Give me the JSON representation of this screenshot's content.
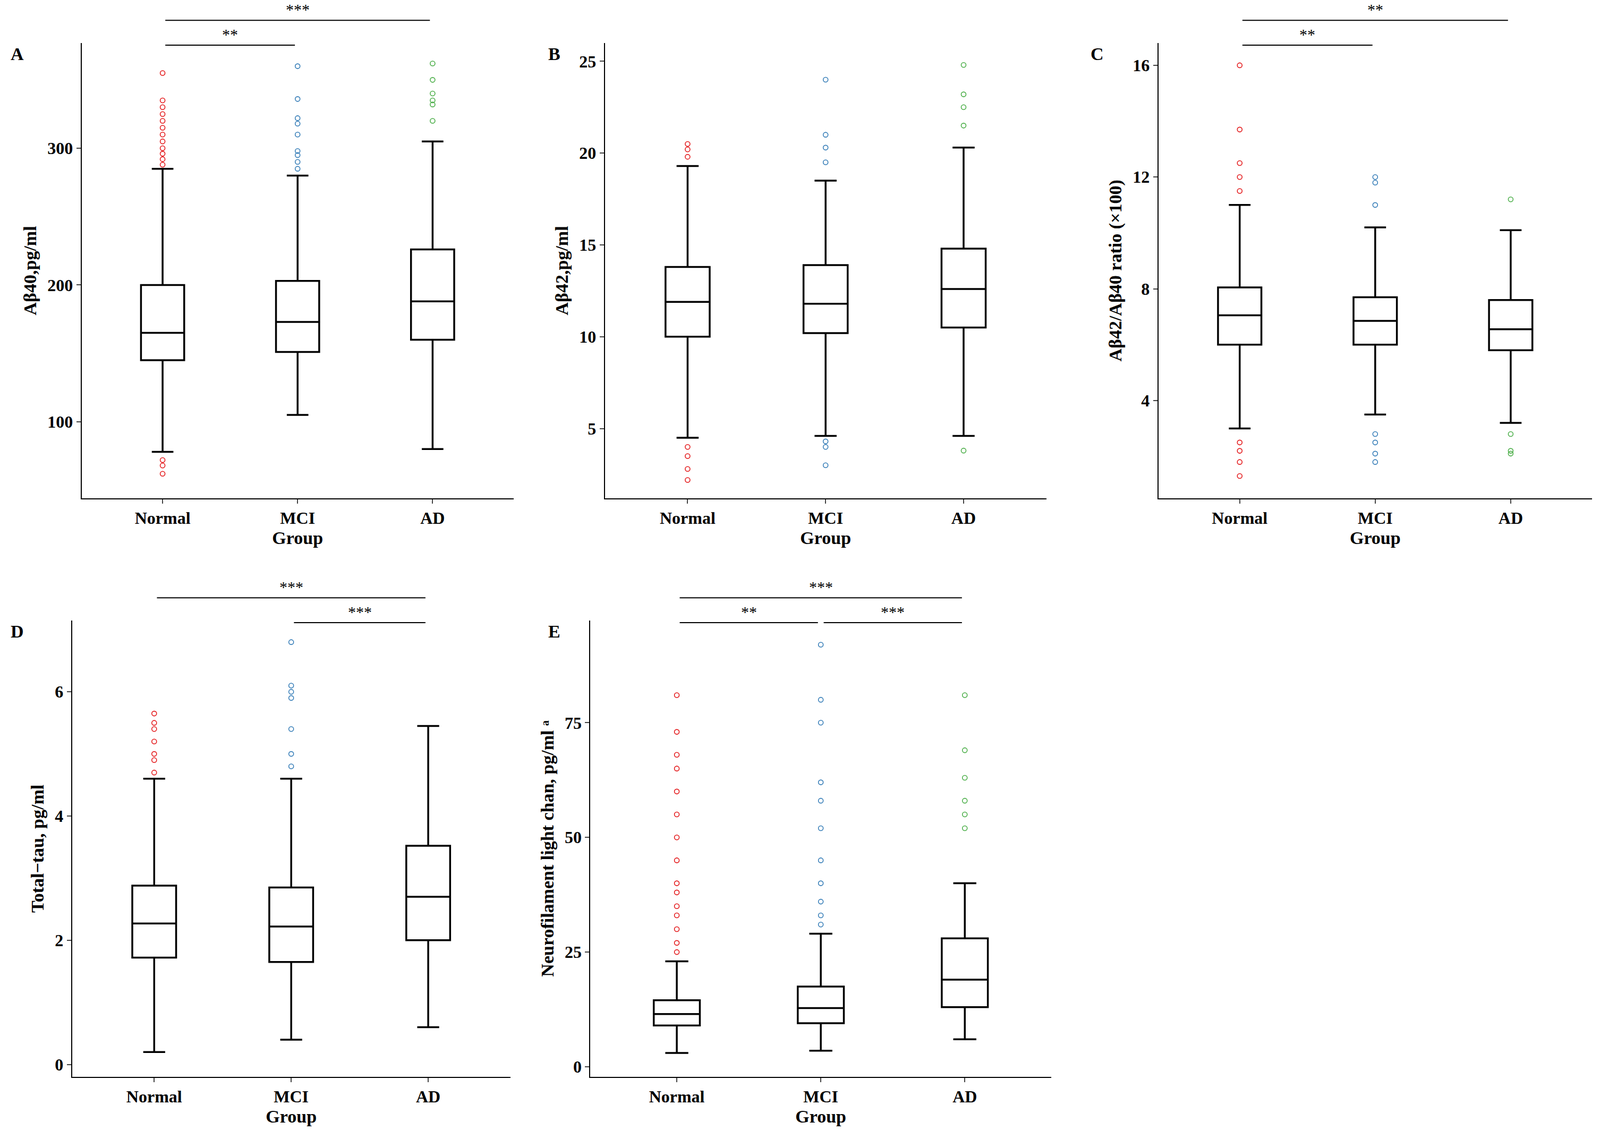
{
  "chart_data": [
    {
      "type": "box",
      "panel": "A",
      "x_label": "Group",
      "y_label": "Aβ40,pg/ml",
      "categories": [
        "Normal",
        "MCI",
        "AD"
      ],
      "colors": [
        "#e41a1c",
        "#377eb8",
        "#4daf4a"
      ],
      "boxes": [
        {
          "q1": 145,
          "median": 165,
          "q3": 200,
          "lower_whisker": 78,
          "upper_whisker": 285,
          "outliers": [
            62,
            68,
            72,
            288,
            292,
            296,
            300,
            305,
            310,
            315,
            320,
            325,
            330,
            335,
            355
          ]
        },
        {
          "q1": 151,
          "median": 173,
          "q3": 203,
          "lower_whisker": 105,
          "upper_whisker": 280,
          "outliers": [
            285,
            290,
            295,
            298,
            310,
            318,
            322,
            336,
            360
          ]
        },
        {
          "q1": 160,
          "median": 188,
          "q3": 226,
          "lower_whisker": 80,
          "upper_whisker": 305,
          "outliers": [
            320,
            332,
            335,
            340,
            350,
            362
          ]
        }
      ],
      "ylim": [
        44,
        377
      ],
      "yticks": [
        100,
        200,
        300
      ],
      "significance": [
        {
          "groups": [
            "Normal",
            "MCI"
          ],
          "label": "**"
        },
        {
          "groups": [
            "Normal",
            "AD"
          ],
          "label": "***"
        }
      ]
    },
    {
      "type": "box",
      "panel": "B",
      "x_label": "Group",
      "y_label": "Aβ42,pg/ml",
      "categories": [
        "Normal",
        "MCI",
        "AD"
      ],
      "colors": [
        "#e41a1c",
        "#377eb8",
        "#4daf4a"
      ],
      "boxes": [
        {
          "q1": 10.0,
          "median": 11.9,
          "q3": 13.8,
          "lower_whisker": 4.5,
          "upper_whisker": 19.3,
          "outliers": [
            2.2,
            2.8,
            3.5,
            4.0,
            19.8,
            20.2,
            20.5
          ]
        },
        {
          "q1": 10.2,
          "median": 11.8,
          "q3": 13.9,
          "lower_whisker": 4.6,
          "upper_whisker": 18.5,
          "outliers": [
            3.0,
            4.0,
            4.3,
            19.5,
            20.3,
            21.0,
            24.0
          ]
        },
        {
          "q1": 10.5,
          "median": 12.6,
          "q3": 14.8,
          "lower_whisker": 4.6,
          "upper_whisker": 20.3,
          "outliers": [
            3.8,
            21.5,
            22.5,
            23.2,
            24.8
          ]
        }
      ],
      "ylim": [
        1.2,
        26
      ],
      "yticks": [
        5,
        10,
        15,
        20,
        25
      ],
      "significance": []
    },
    {
      "type": "box",
      "panel": "C",
      "x_label": "Group",
      "y_label": "Aβ42/Aβ40 ratio (×100)",
      "categories": [
        "Normal",
        "MCI",
        "AD"
      ],
      "colors": [
        "#e41a1c",
        "#377eb8",
        "#4daf4a"
      ],
      "boxes": [
        {
          "q1": 6.0,
          "median": 7.05,
          "q3": 8.05,
          "lower_whisker": 3.0,
          "upper_whisker": 11.0,
          "outliers": [
            1.3,
            1.8,
            2.2,
            2.5,
            11.5,
            12.0,
            12.5,
            13.7,
            16.0
          ]
        },
        {
          "q1": 6.0,
          "median": 6.85,
          "q3": 7.7,
          "lower_whisker": 3.5,
          "upper_whisker": 10.2,
          "outliers": [
            1.8,
            2.1,
            2.5,
            2.8,
            11.0,
            11.8,
            12.0
          ]
        },
        {
          "q1": 5.8,
          "median": 6.55,
          "q3": 7.6,
          "lower_whisker": 3.2,
          "upper_whisker": 10.1,
          "outliers": [
            2.1,
            2.2,
            2.8,
            11.2
          ]
        }
      ],
      "ylim": [
        0.5,
        16.8
      ],
      "yticks": [
        4,
        8,
        12,
        16
      ],
      "significance": [
        {
          "groups": [
            "Normal",
            "MCI"
          ],
          "label": "**"
        },
        {
          "groups": [
            "Normal",
            "AD"
          ],
          "label": "**"
        }
      ]
    },
    {
      "type": "box",
      "panel": "D",
      "x_label": "Group",
      "y_label": "Total−tau, pg/ml",
      "categories": [
        "Normal",
        "MCI",
        "AD"
      ],
      "colors": [
        "#e41a1c",
        "#377eb8",
        "#4daf4a"
      ],
      "boxes": [
        {
          "q1": 1.72,
          "median": 2.27,
          "q3": 2.88,
          "lower_whisker": 0.2,
          "upper_whisker": 4.6,
          "outliers": [
            4.7,
            4.9,
            5.0,
            5.2,
            5.4,
            5.5,
            5.65
          ]
        },
        {
          "q1": 1.65,
          "median": 2.22,
          "q3": 2.85,
          "lower_whisker": 0.4,
          "upper_whisker": 4.6,
          "outliers": [
            4.8,
            5.0,
            5.4,
            5.9,
            6.0,
            6.1,
            6.8
          ]
        },
        {
          "q1": 2.0,
          "median": 2.7,
          "q3": 3.52,
          "lower_whisker": 0.6,
          "upper_whisker": 5.45,
          "outliers": []
        }
      ],
      "ylim": [
        -0.2,
        7.15
      ],
      "yticks": [
        0,
        2,
        4,
        6
      ],
      "significance": [
        {
          "groups": [
            "MCI",
            "AD"
          ],
          "label": "***"
        },
        {
          "groups": [
            "Normal",
            "AD"
          ],
          "label": "***"
        }
      ]
    },
    {
      "type": "box",
      "panel": "E",
      "x_label": "Group",
      "y_label": "Neurofilament light chan, pg/ml ᵃ",
      "categories": [
        "Normal",
        "MCI",
        "AD"
      ],
      "colors": [
        "#e41a1c",
        "#377eb8",
        "#4daf4a"
      ],
      "boxes": [
        {
          "q1": 9.0,
          "median": 11.5,
          "q3": 14.5,
          "lower_whisker": 3,
          "upper_whisker": 23,
          "outliers": [
            25,
            27,
            30,
            33,
            35,
            38,
            40,
            45,
            50,
            55,
            60,
            65,
            68,
            73,
            81
          ]
        },
        {
          "q1": 9.5,
          "median": 12.8,
          "q3": 17.5,
          "lower_whisker": 3.5,
          "upper_whisker": 29,
          "outliers": [
            31,
            33,
            36,
            40,
            45,
            52,
            58,
            62,
            75,
            80,
            92
          ]
        },
        {
          "q1": 13,
          "median": 19,
          "q3": 28,
          "lower_whisker": 6,
          "upper_whisker": 40,
          "outliers": [
            52,
            55,
            58,
            63,
            69,
            81
          ]
        }
      ],
      "ylim": [
        -2.2,
        97.3
      ],
      "yticks": [
        0,
        25,
        50,
        75
      ],
      "significance": [
        {
          "groups": [
            "Normal",
            "MCI"
          ],
          "label": "**"
        },
        {
          "groups": [
            "MCI",
            "AD"
          ],
          "label": "***"
        },
        {
          "groups": [
            "Normal",
            "AD"
          ],
          "label": "***"
        }
      ]
    }
  ]
}
